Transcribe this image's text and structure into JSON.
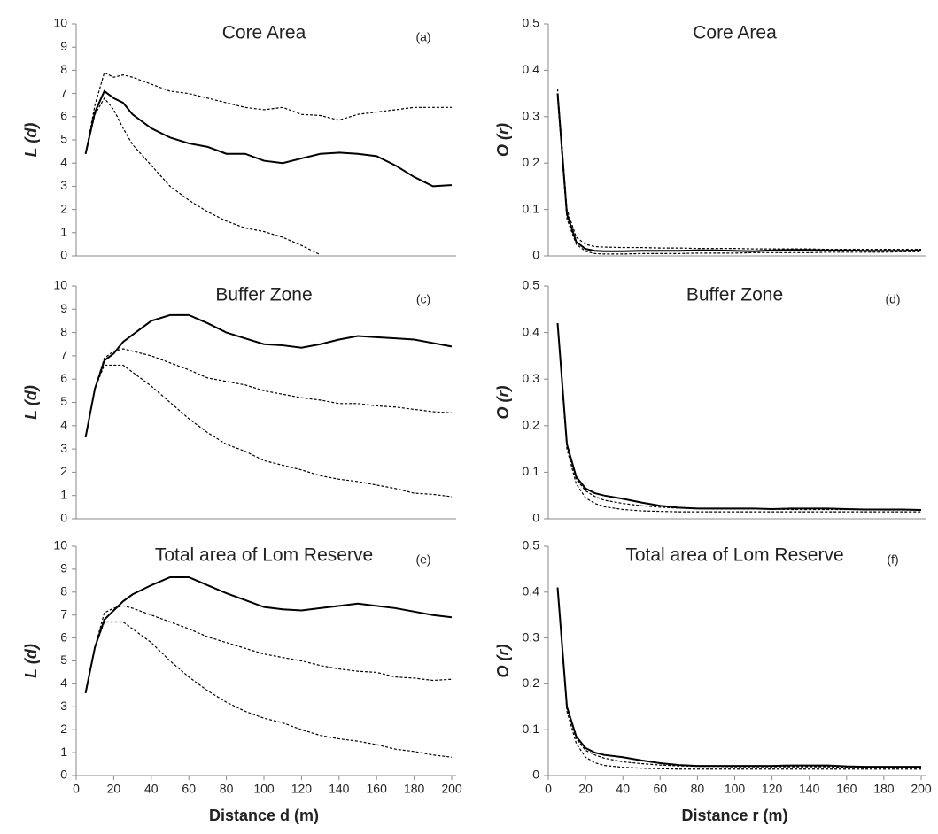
{
  "chart_data": [
    {
      "type": "line",
      "title": "Core Area",
      "panel_label": "(a)",
      "ylabel": "L (d)",
      "x": [
        5,
        10,
        15,
        20,
        25,
        30,
        40,
        50,
        60,
        70,
        80,
        90,
        100,
        110,
        120,
        130,
        140,
        150,
        160,
        170,
        180,
        190,
        200
      ],
      "xlim": [
        0,
        200
      ],
      "ylim": [
        0,
        10
      ],
      "yticks": [
        0,
        1,
        2,
        3,
        4,
        5,
        6,
        7,
        8,
        9,
        10
      ],
      "series": [
        {
          "color": "#000000",
          "linestyle": "solid",
          "values": [
            4.4,
            6.2,
            7.1,
            6.8,
            6.6,
            6.1,
            5.5,
            5.1,
            4.85,
            4.7,
            4.4,
            4.4,
            4.1,
            4.0,
            4.2,
            4.4,
            4.45,
            4.4,
            4.3,
            3.9,
            3.4,
            3.0,
            3.05
          ]
        },
        {
          "color": "#000000",
          "linestyle": "dashed",
          "values": [
            4.4,
            6.5,
            7.9,
            7.7,
            7.8,
            7.7,
            7.4,
            7.1,
            7.0,
            6.8,
            6.6,
            6.4,
            6.3,
            6.4,
            6.1,
            6.05,
            5.85,
            6.1,
            6.2,
            6.3,
            6.4,
            6.4,
            6.4
          ]
        },
        {
          "color": "#000000",
          "linestyle": "dashed",
          "values": [
            4.4,
            6.1,
            6.8,
            6.3,
            5.5,
            4.8,
            3.9,
            3.0,
            2.4,
            1.9,
            1.5,
            1.2,
            1.05,
            0.8,
            0.45,
            0.05,
            null,
            null,
            null,
            null,
            null,
            null,
            null
          ]
        }
      ]
    },
    {
      "type": "line",
      "title": "Core Area",
      "ylabel": "O (r)",
      "x": [
        5,
        10,
        15,
        20,
        25,
        30,
        40,
        50,
        60,
        70,
        80,
        90,
        100,
        110,
        120,
        130,
        140,
        150,
        160,
        170,
        180,
        190,
        200
      ],
      "xlim": [
        0,
        200
      ],
      "ylim": [
        0,
        0.5
      ],
      "yticks": [
        0,
        0.1,
        0.2,
        0.3,
        0.4,
        0.5
      ],
      "series": [
        {
          "color": "#000000",
          "linestyle": "solid",
          "values": [
            0.35,
            0.09,
            0.03,
            0.015,
            0.011,
            0.01,
            0.01,
            0.011,
            0.011,
            0.011,
            0.012,
            0.012,
            0.011,
            0.01,
            0.012,
            0.013,
            0.013,
            0.012,
            0.012,
            0.011,
            0.011,
            0.011,
            0.012
          ]
        },
        {
          "color": "#000000",
          "linestyle": "dashed",
          "values": [
            0.36,
            0.1,
            0.04,
            0.025,
            0.02,
            0.019,
            0.018,
            0.018,
            0.017,
            0.017,
            0.016,
            0.016,
            0.016,
            0.015,
            0.015,
            0.015,
            0.015,
            0.014,
            0.014,
            0.014,
            0.014,
            0.014,
            0.014
          ]
        },
        {
          "color": "#000000",
          "linestyle": "dashed",
          "values": [
            0.34,
            0.08,
            0.025,
            0.01,
            0.005,
            0.004,
            0.004,
            0.005,
            0.005,
            0.005,
            0.006,
            0.006,
            0.006,
            0.007,
            0.007,
            0.007,
            0.007,
            0.008,
            0.008,
            0.008,
            0.008,
            0.009,
            0.009
          ]
        }
      ]
    },
    {
      "type": "line",
      "title": "Buffer Zone",
      "panel_label": "(c)",
      "ylabel": "L (d)",
      "x": [
        5,
        10,
        15,
        20,
        25,
        30,
        40,
        50,
        60,
        70,
        80,
        90,
        100,
        110,
        120,
        130,
        140,
        150,
        160,
        170,
        180,
        190,
        200
      ],
      "xlim": [
        0,
        200
      ],
      "ylim": [
        0,
        10
      ],
      "yticks": [
        0,
        1,
        2,
        3,
        4,
        5,
        6,
        7,
        8,
        9,
        10
      ],
      "series": [
        {
          "color": "#000000",
          "linestyle": "solid",
          "values": [
            3.5,
            5.6,
            6.8,
            7.1,
            7.6,
            7.9,
            8.5,
            8.75,
            8.75,
            8.4,
            8.0,
            7.75,
            7.5,
            7.45,
            7.35,
            7.5,
            7.7,
            7.85,
            7.8,
            7.75,
            7.7,
            7.55,
            7.4
          ]
        },
        {
          "color": "#000000",
          "linestyle": "dashed",
          "values": [
            3.5,
            5.6,
            6.9,
            7.2,
            7.3,
            7.2,
            7.0,
            6.7,
            6.4,
            6.05,
            5.9,
            5.75,
            5.5,
            5.35,
            5.2,
            5.1,
            4.95,
            4.95,
            4.85,
            4.8,
            4.7,
            4.6,
            4.55
          ]
        },
        {
          "color": "#000000",
          "linestyle": "dashed",
          "values": [
            3.5,
            5.6,
            6.6,
            6.6,
            6.6,
            6.3,
            5.7,
            5.0,
            4.3,
            3.7,
            3.2,
            2.9,
            2.5,
            2.3,
            2.1,
            1.85,
            1.7,
            1.6,
            1.45,
            1.3,
            1.1,
            1.05,
            0.95
          ]
        }
      ]
    },
    {
      "type": "line",
      "title": "Buffer Zone",
      "panel_label": "(d)",
      "ylabel": "O (r)",
      "x": [
        5,
        10,
        15,
        20,
        25,
        30,
        40,
        50,
        60,
        70,
        80,
        90,
        100,
        110,
        120,
        130,
        140,
        150,
        160,
        170,
        180,
        190,
        200
      ],
      "xlim": [
        0,
        200
      ],
      "ylim": [
        0,
        0.5
      ],
      "yticks": [
        0,
        0.1,
        0.2,
        0.3,
        0.4,
        0.5
      ],
      "series": [
        {
          "color": "#000000",
          "linestyle": "solid",
          "values": [
            0.42,
            0.16,
            0.09,
            0.065,
            0.055,
            0.05,
            0.043,
            0.035,
            0.028,
            0.024,
            0.022,
            0.022,
            0.022,
            0.022,
            0.021,
            0.022,
            0.022,
            0.022,
            0.021,
            0.02,
            0.02,
            0.02,
            0.019
          ]
        },
        {
          "color": "#000000",
          "linestyle": "dashed",
          "values": [
            0.42,
            0.16,
            0.085,
            0.06,
            0.048,
            0.04,
            0.033,
            0.028,
            0.025,
            0.023,
            0.022,
            0.021,
            0.021,
            0.021,
            0.021,
            0.02,
            0.02,
            0.02,
            0.02,
            0.02,
            0.019,
            0.019,
            0.019
          ]
        },
        {
          "color": "#000000",
          "linestyle": "dashed",
          "values": [
            0.42,
            0.15,
            0.075,
            0.045,
            0.033,
            0.026,
            0.02,
            0.017,
            0.016,
            0.015,
            0.015,
            0.015,
            0.015,
            0.015,
            0.015,
            0.015,
            0.015,
            0.015,
            0.015,
            0.015,
            0.015,
            0.015,
            0.015
          ]
        }
      ]
    },
    {
      "type": "line",
      "title": "Total area of Lom Reserve",
      "panel_label": "(e)",
      "ylabel": "L (d)",
      "xlabel": "Distance d (m)",
      "x": [
        5,
        10,
        15,
        20,
        25,
        30,
        40,
        50,
        60,
        70,
        80,
        90,
        100,
        110,
        120,
        130,
        140,
        150,
        160,
        170,
        180,
        190,
        200
      ],
      "xlim": [
        0,
        200
      ],
      "xticks": [
        0,
        20,
        40,
        60,
        80,
        100,
        120,
        140,
        160,
        180,
        200
      ],
      "ylim": [
        0,
        10
      ],
      "yticks": [
        0,
        1,
        2,
        3,
        4,
        5,
        6,
        7,
        8,
        9,
        10
      ],
      "series": [
        {
          "color": "#000000",
          "linestyle": "solid",
          "values": [
            3.6,
            5.6,
            6.8,
            7.2,
            7.6,
            7.9,
            8.3,
            8.65,
            8.65,
            8.3,
            7.95,
            7.65,
            7.35,
            7.25,
            7.2,
            7.3,
            7.4,
            7.5,
            7.4,
            7.3,
            7.15,
            7.0,
            6.9
          ]
        },
        {
          "color": "#000000",
          "linestyle": "dashed",
          "values": [
            3.6,
            5.6,
            7.1,
            7.3,
            7.4,
            7.3,
            7.0,
            6.7,
            6.4,
            6.05,
            5.8,
            5.55,
            5.3,
            5.15,
            5.0,
            4.8,
            4.65,
            4.55,
            4.5,
            4.3,
            4.25,
            4.15,
            4.2
          ]
        },
        {
          "color": "#000000",
          "linestyle": "dashed",
          "values": [
            3.6,
            5.6,
            6.7,
            6.7,
            6.7,
            6.4,
            5.8,
            5.0,
            4.3,
            3.7,
            3.2,
            2.8,
            2.5,
            2.3,
            2.0,
            1.75,
            1.6,
            1.5,
            1.35,
            1.15,
            1.05,
            0.9,
            0.8
          ]
        }
      ]
    },
    {
      "type": "line",
      "title": "Total area of Lom Reserve",
      "panel_label": "(f)",
      "ylabel": "O (r)",
      "xlabel": "Distance r (m)",
      "x": [
        5,
        10,
        15,
        20,
        25,
        30,
        40,
        50,
        60,
        70,
        80,
        90,
        100,
        110,
        120,
        130,
        140,
        150,
        160,
        170,
        180,
        190,
        200
      ],
      "xlim": [
        0,
        200
      ],
      "xticks": [
        0,
        20,
        40,
        60,
        80,
        100,
        120,
        140,
        160,
        180,
        200
      ],
      "ylim": [
        0,
        0.5
      ],
      "yticks": [
        0,
        0.1,
        0.2,
        0.3,
        0.4,
        0.5
      ],
      "series": [
        {
          "color": "#000000",
          "linestyle": "solid",
          "values": [
            0.41,
            0.15,
            0.085,
            0.06,
            0.05,
            0.045,
            0.04,
            0.033,
            0.027,
            0.023,
            0.021,
            0.021,
            0.021,
            0.021,
            0.021,
            0.022,
            0.022,
            0.022,
            0.02,
            0.019,
            0.019,
            0.019,
            0.019
          ]
        },
        {
          "color": "#000000",
          "linestyle": "dashed",
          "values": [
            0.41,
            0.15,
            0.08,
            0.055,
            0.045,
            0.038,
            0.03,
            0.026,
            0.023,
            0.021,
            0.02,
            0.02,
            0.019,
            0.019,
            0.019,
            0.019,
            0.019,
            0.019,
            0.018,
            0.018,
            0.018,
            0.018,
            0.018
          ]
        },
        {
          "color": "#000000",
          "linestyle": "dashed",
          "values": [
            0.41,
            0.14,
            0.07,
            0.04,
            0.028,
            0.022,
            0.018,
            0.016,
            0.015,
            0.014,
            0.014,
            0.014,
            0.014,
            0.014,
            0.014,
            0.014,
            0.014,
            0.014,
            0.014,
            0.014,
            0.014,
            0.014,
            0.014
          ]
        }
      ]
    }
  ]
}
